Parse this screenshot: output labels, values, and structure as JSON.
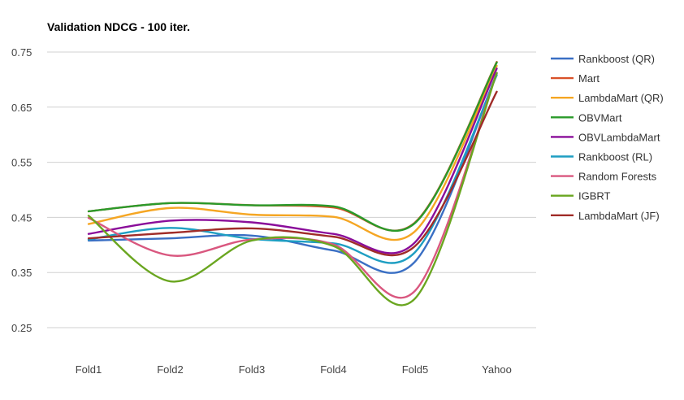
{
  "chart_data": {
    "type": "line",
    "title": "Validation NDCG - 100 iter.",
    "xlabel": "",
    "ylabel": "",
    "categories": [
      "Fold1",
      "Fold2",
      "Fold3",
      "Fold4",
      "Fold5",
      "Yahoo"
    ],
    "ylim": [
      0.25,
      0.75
    ],
    "yticks": [
      0.75,
      0.65,
      0.55,
      0.45,
      0.35,
      0.25
    ],
    "ytick_labels": [
      "0.75",
      "0.65",
      "0.55",
      "0.45",
      "0.35",
      "0.25"
    ],
    "grid": true,
    "legend_position": "right",
    "smooth": true,
    "series": [
      {
        "name": "Rankboost (QR)",
        "color": "#3a6fc4",
        "values": [
          0.408,
          0.412,
          0.417,
          0.39,
          0.37,
          0.711
        ]
      },
      {
        "name": "Mart",
        "color": "#d9522a",
        "values": [
          0.461,
          0.476,
          0.472,
          0.468,
          0.441,
          0.732
        ]
      },
      {
        "name": "LambdaMart (QR)",
        "color": "#f5a623",
        "values": [
          0.438,
          0.467,
          0.455,
          0.451,
          0.425,
          0.725
        ]
      },
      {
        "name": "OBVMart",
        "color": "#2a9a2a",
        "values": [
          0.461,
          0.476,
          0.472,
          0.47,
          0.44,
          0.731
        ]
      },
      {
        "name": "OBVLambdaMart",
        "color": "#8a0d9a",
        "values": [
          0.42,
          0.444,
          0.441,
          0.42,
          0.405,
          0.72
        ]
      },
      {
        "name": "Rankboost (RL)",
        "color": "#1e9ec2",
        "values": [
          0.41,
          0.431,
          0.411,
          0.403,
          0.387,
          0.708
        ]
      },
      {
        "name": "Random Forests",
        "color": "#d9577f",
        "values": [
          0.449,
          0.381,
          0.41,
          0.401,
          0.317,
          0.712
        ]
      },
      {
        "name": "IGBRT",
        "color": "#6aa620",
        "values": [
          0.453,
          0.334,
          0.408,
          0.398,
          0.303,
          0.712
        ]
      },
      {
        "name": "LambdaMart (JF)",
        "color": "#a02c28",
        "values": [
          0.412,
          0.422,
          0.43,
          0.415,
          0.398,
          0.678
        ]
      }
    ]
  }
}
